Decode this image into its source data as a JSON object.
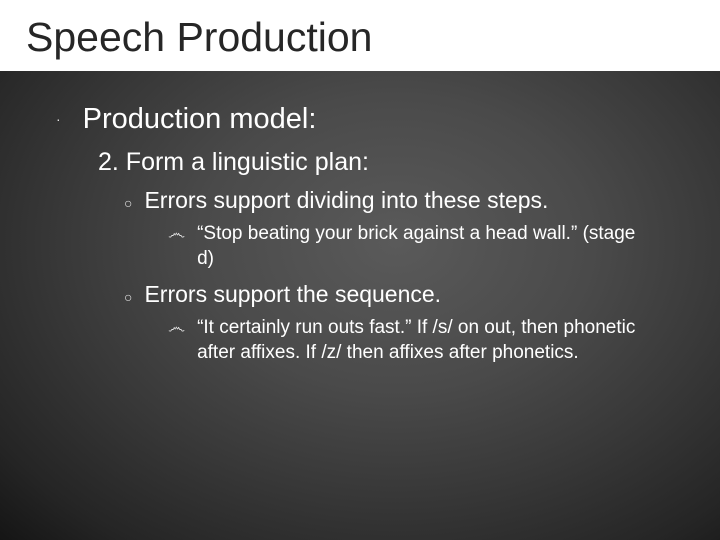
{
  "slide": {
    "title": "Speech Production",
    "background_gradient": {
      "center": "#5a5a5a",
      "mid": "#4a4a4a",
      "outer": "#252525",
      "edge": "#151515"
    },
    "title_box_bg": "#ffffff",
    "title_color": "#262626",
    "title_fontsize": 41,
    "body_color": "#ffffff",
    "bullet_color": "#e6e6e6",
    "level1": {
      "bullet": "·",
      "text": "Production model:",
      "fontsize": 29
    },
    "level2": {
      "text": "2. Form a linguistic plan:",
      "fontsize": 25
    },
    "level3a": {
      "bullet": "○",
      "text": "Errors support dividing into these steps.",
      "fontsize": 23
    },
    "level4a": {
      "bullet": "෴",
      "text": "“Stop beating your brick against a head wall.” (stage d)",
      "fontsize": 19
    },
    "level3b": {
      "bullet": "○",
      "text": "Errors support the sequence.",
      "fontsize": 23
    },
    "level4b": {
      "bullet": "෴",
      "text": "“It certainly run outs fast.”  If /s/ on out, then phonetic after affixes. If /z/ then affixes after phonetics.",
      "fontsize": 19
    }
  }
}
